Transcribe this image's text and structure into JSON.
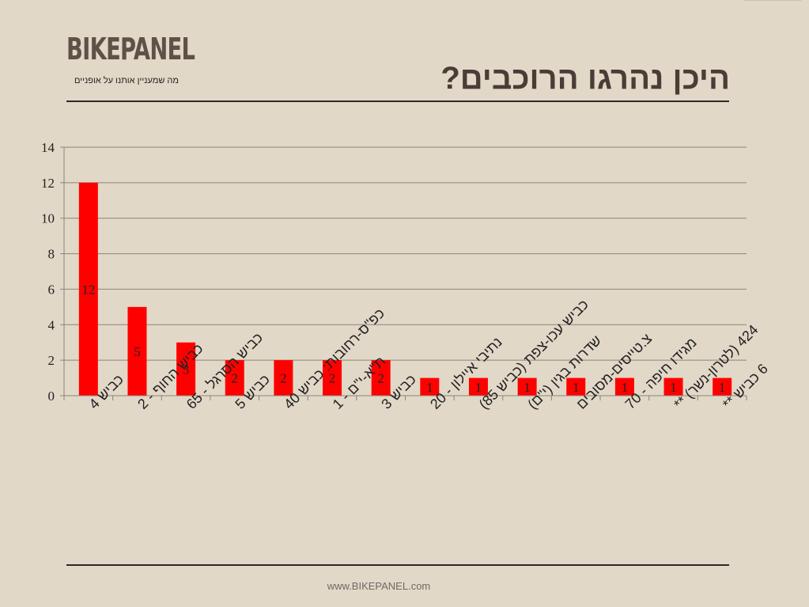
{
  "header": {
    "logo": "BIKEPANEL",
    "tagline": "מה שמעניין אותנו על אופניים",
    "title": "היכן נהרגו הרוכבים?"
  },
  "footer": {
    "url": "www.BIKEPANEL.com"
  },
  "chart_data": {
    "type": "bar",
    "title": "היכן נהרגו הרוכבים?",
    "xlabel": "",
    "ylabel": "",
    "ylim": [
      0,
      14
    ],
    "yticks": [
      0,
      2,
      4,
      6,
      8,
      10,
      12,
      14
    ],
    "grid": true,
    "legend": "none",
    "bar_color": "#ff0000",
    "categories": [
      "כביש 4",
      "כביש החוף - 2",
      "כביש הסרגל - 65",
      "כביש 5",
      "כפ\"ס-רחובות: כביש 40",
      "ת\"א-י\"ם - 1",
      "כביש 3",
      "נתיבי איילון - 20",
      "כביש עכו-צפת (כביש 85)",
      "שדרות בגין (י\"ם)",
      "צ.טייסים-מסובים",
      "מגידו חיפה - 70",
      "424 (לטרון-נשר) **",
      "6 כביש **"
    ],
    "values": [
      12,
      5,
      3,
      2,
      2,
      2,
      2,
      1,
      1,
      1,
      1,
      1,
      1,
      1
    ]
  }
}
